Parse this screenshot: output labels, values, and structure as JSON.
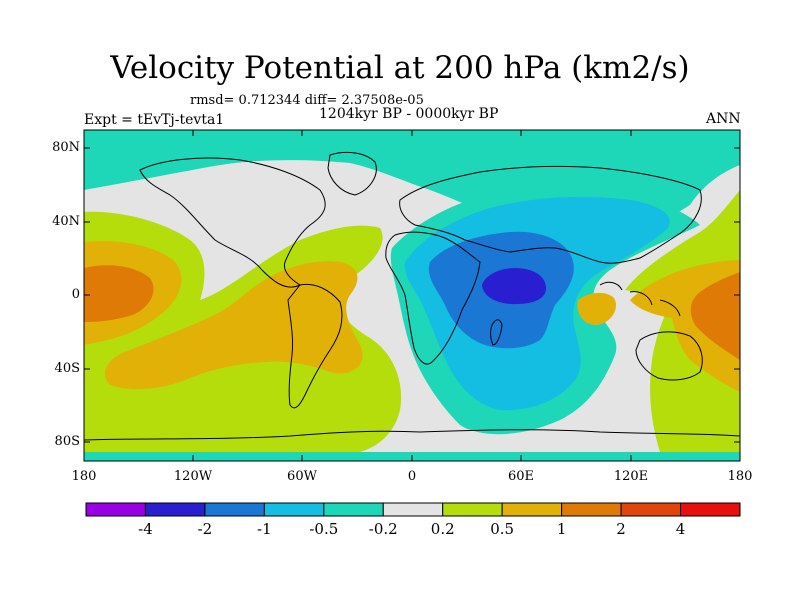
{
  "title": "Velocity Potential at 200 hPa (km2/s)",
  "stats": "rmsd= 0.712344  diff= 2.37508e-05",
  "period": "1204kyr BP - 0000kyr BP",
  "experiment": "Expt = tEvTj-tevta1",
  "season": "ANN",
  "lat_labels": [
    "80N",
    "40N",
    "0",
    "40S",
    "80S"
  ],
  "lon_labels": [
    "180",
    "120W",
    "60W",
    "0",
    "60E",
    "120E",
    "180"
  ],
  "colorbar": {
    "levels": [
      "-4",
      "-2",
      "-1",
      "-0.5",
      "-0.2",
      "0.2",
      "0.5",
      "1",
      "2",
      "4"
    ],
    "colors": [
      "#9a00e6",
      "#2a1fd0",
      "#1a78d4",
      "#14bde2",
      "#1dd7b8",
      "#e4e4e4",
      "#b5dc0b",
      "#e2b108",
      "#e07a07",
      "#e04509",
      "#e80f0f"
    ]
  },
  "colors": {
    "background_neutral": "#e4e4e4",
    "coastline": "#000000"
  }
}
